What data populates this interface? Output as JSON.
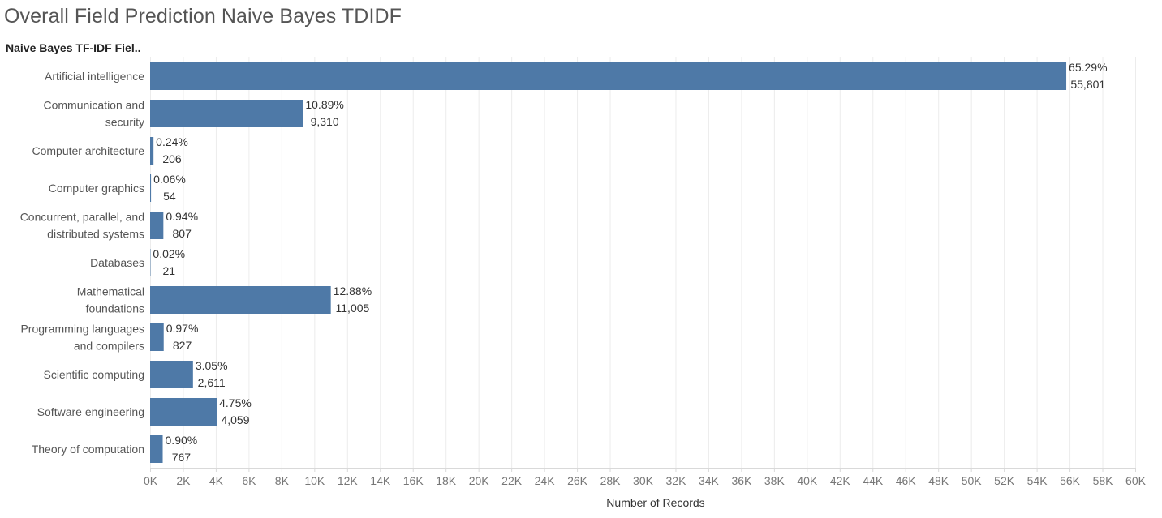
{
  "title": "Overall Field Prediction Naive Bayes TDIDF",
  "column_header": "Naive Bayes TF-IDF Fiel..",
  "chart_data": {
    "type": "bar",
    "orientation": "horizontal",
    "categories": [
      "Artificial intelligence",
      "Communication and security",
      "Computer architecture",
      "Computer graphics",
      "Concurrent, parallel, and distributed systems",
      "Databases",
      "Mathematical foundations",
      "Programming languages and compilers",
      "Scientific computing",
      "Software engineering",
      "Theory of computation"
    ],
    "category_label_lines": [
      [
        "Artificial intelligence"
      ],
      [
        "Communication and",
        "security"
      ],
      [
        "Computer architecture"
      ],
      [
        "Computer graphics"
      ],
      [
        "Concurrent, parallel, and",
        "distributed systems"
      ],
      [
        "Databases"
      ],
      [
        "Mathematical",
        "foundations"
      ],
      [
        "Programming languages",
        "and compilers"
      ],
      [
        "Scientific computing"
      ],
      [
        "Software engineering"
      ],
      [
        "Theory of computation"
      ]
    ],
    "values": [
      55801,
      9310,
      206,
      54,
      807,
      21,
      11005,
      827,
      2611,
      4059,
      767
    ],
    "percent_labels": [
      "65.29%",
      "10.89%",
      "0.24%",
      "0.06%",
      "0.94%",
      "0.02%",
      "12.88%",
      "0.97%",
      "3.05%",
      "4.75%",
      "0.90%"
    ],
    "value_labels": [
      "55,801",
      "9,310",
      "206",
      "54",
      "807",
      "21",
      "11,005",
      "827",
      "2,611",
      "4,059",
      "767"
    ],
    "xlabel": "Number of Records",
    "xlim": [
      0,
      60000
    ],
    "x_ticks": [
      0,
      2000,
      4000,
      6000,
      8000,
      10000,
      12000,
      14000,
      16000,
      18000,
      20000,
      22000,
      24000,
      26000,
      28000,
      30000,
      32000,
      34000,
      36000,
      38000,
      40000,
      42000,
      44000,
      46000,
      48000,
      50000,
      52000,
      54000,
      56000,
      58000,
      60000
    ],
    "x_tick_labels": [
      "0K",
      "2K",
      "4K",
      "6K",
      "8K",
      "10K",
      "12K",
      "14K",
      "16K",
      "18K",
      "20K",
      "22K",
      "24K",
      "26K",
      "28K",
      "30K",
      "32K",
      "34K",
      "36K",
      "38K",
      "40K",
      "42K",
      "44K",
      "46K",
      "48K",
      "50K",
      "52K",
      "54K",
      "56K",
      "58K",
      "60K"
    ],
    "grid": true,
    "bar_color": "#4e79a7"
  }
}
